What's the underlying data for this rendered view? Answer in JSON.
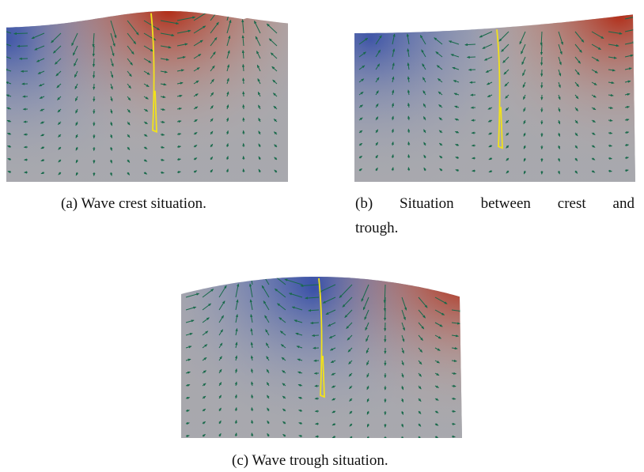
{
  "figures": [
    {
      "caption_lines": [
        "(a) Wave crest situation."
      ]
    },
    {
      "caption_lines": [
        "(b) Situation between crest and",
        "trough."
      ]
    },
    {
      "caption_lines": [
        "(c) Wave trough situation."
      ]
    }
  ]
}
